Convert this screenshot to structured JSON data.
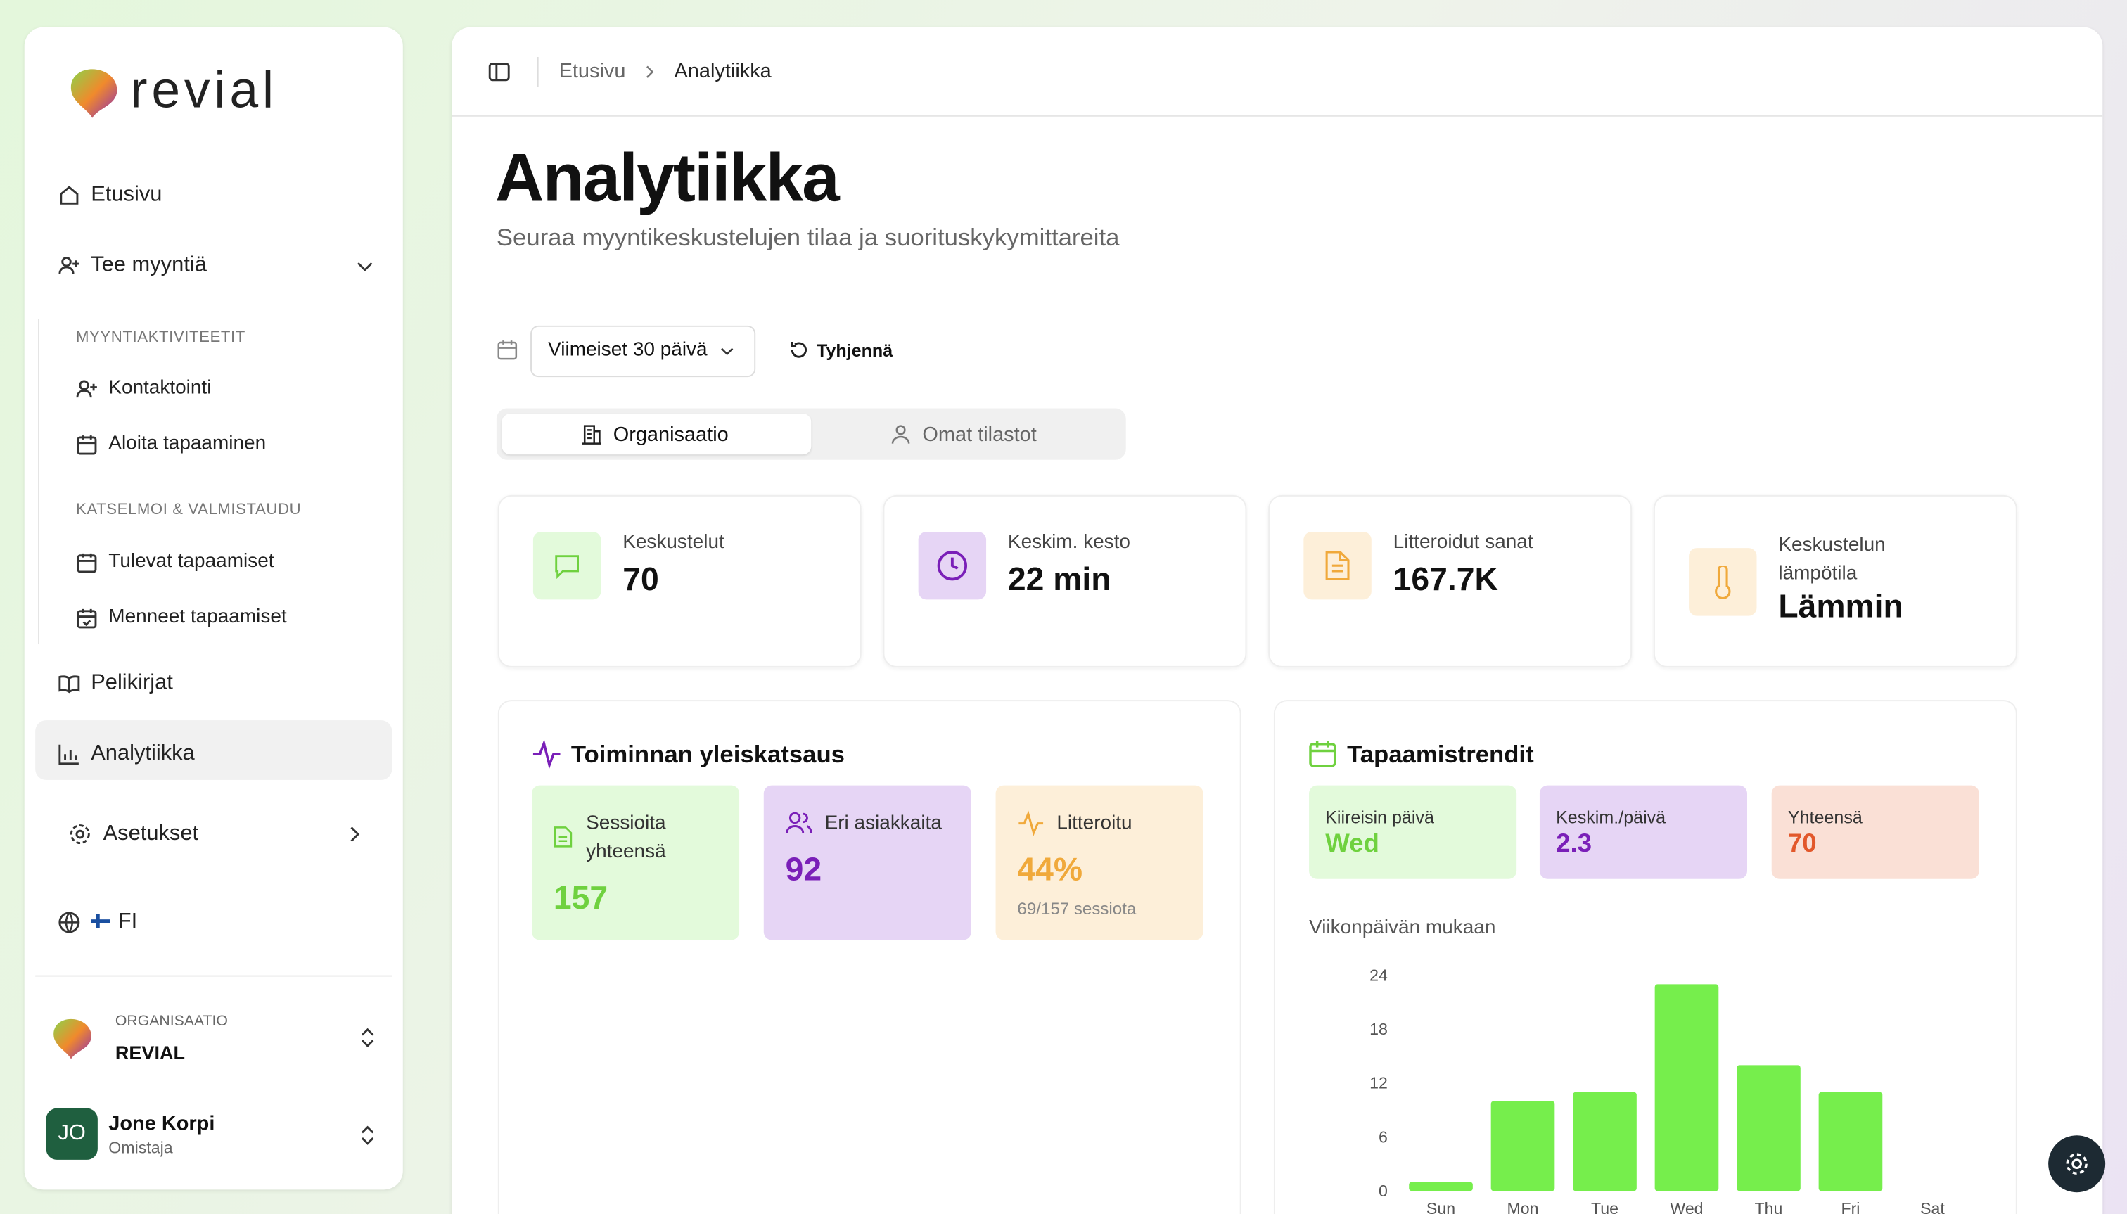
{
  "sidebar": {
    "brand": "revial",
    "items": {
      "home": "Etusivu",
      "sell": "Tee myyntiä",
      "playbooks": "Pelikirjat",
      "analytics": "Analytiikka",
      "settings": "Asetukset",
      "lang": "FI"
    },
    "groups": [
      {
        "label": "MYYNTIAKTIVITEETIT",
        "items": [
          "Kontaktointi",
          "Aloita tapaaminen"
        ]
      },
      {
        "label": "KATSELMOI & VALMISTAUDU",
        "items": [
          "Tulevat tapaamiset",
          "Menneet tapaamiset"
        ]
      }
    ],
    "org": {
      "label": "ORGANISAATIO",
      "name": "REVIAL"
    },
    "user": {
      "initials": "JO",
      "name": "Jone Korpi",
      "role": "Omistaja"
    }
  },
  "header": {
    "breadcrumb": [
      "Etusivu",
      "Analytiikka"
    ],
    "title": "Analytiikka",
    "subtitle": "Seuraa myyntikeskustelujen tilaa ja suorituskykymittareita"
  },
  "filters": {
    "range": "Viimeiset 30 päivä",
    "reset": "Tyhjennä",
    "tabs": [
      "Organisaatio",
      "Omat tilastot"
    ]
  },
  "kpis": [
    {
      "label": "Keskustelut",
      "value": 70
    },
    {
      "label": "Keskim. kesto",
      "value": "22 min"
    },
    {
      "label": "Litteroidut sanat",
      "value": "167.7K"
    },
    {
      "label": "Keskustelun lämpötila",
      "value": "Lämmin"
    }
  ],
  "overview": {
    "title": "Toiminnan yleiskatsaus",
    "cards": [
      {
        "label": "Sessioita yhteensä",
        "value": 157
      },
      {
        "label": "Eri asiakkaita",
        "value": 92
      },
      {
        "label": "Litteroitu",
        "value": "44%",
        "note": "69/157 sessiota"
      }
    ]
  },
  "trends": {
    "title": "Tapaamistrendit",
    "cards": [
      {
        "label": "Kiireisin päivä",
        "value": "Wed"
      },
      {
        "label": "Keskim./päivä",
        "value": 2.3
      },
      {
        "label": "Yhteensä",
        "value": 70
      }
    ],
    "chart_data": {
      "type": "bar",
      "title": "Viikonpäivän mukaan",
      "categories": [
        "Sun",
        "Mon",
        "Tue",
        "Wed",
        "Thu",
        "Fri",
        "Sat"
      ],
      "values": [
        1,
        10,
        11,
        23,
        14,
        11,
        0
      ],
      "color": "#76ee4c",
      "ylim": [
        0,
        24
      ],
      "yticks": [
        0,
        6,
        12,
        18,
        24
      ],
      "grid": false
    }
  }
}
